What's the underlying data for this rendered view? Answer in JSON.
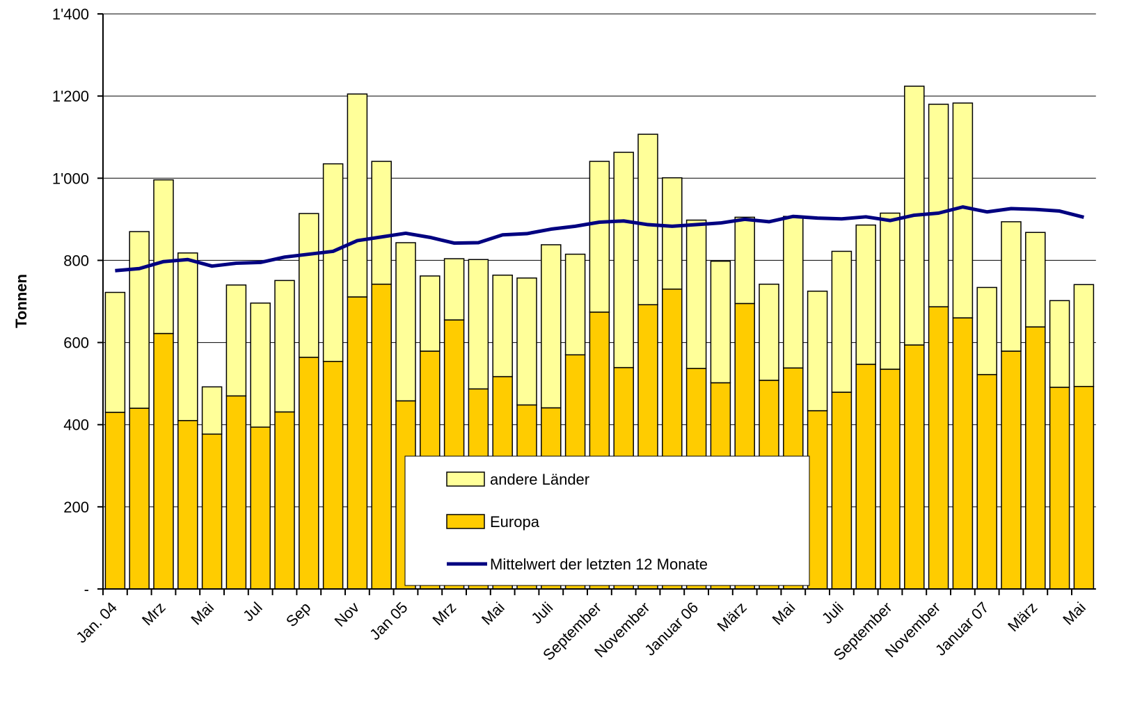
{
  "chart_data": {
    "type": "bar",
    "stacked": true,
    "y_label": "Tonnen",
    "categories": [
      "Jan. 04",
      null,
      "Mrz",
      null,
      "Mai",
      null,
      "Jul",
      null,
      "Sep",
      null,
      "Nov",
      null,
      "Jan 05",
      null,
      "Mrz",
      null,
      "Mai",
      null,
      "Juli",
      null,
      "September",
      null,
      "November",
      null,
      "Januar 06",
      null,
      "März",
      null,
      "Mai",
      null,
      "Juli",
      null,
      "September",
      null,
      "November",
      null,
      "Januar 07",
      null,
      "März",
      null,
      "Mai"
    ],
    "series": [
      {
        "name": "Europa",
        "type": "bar",
        "color": "#FFCC00",
        "values": [
          430,
          440,
          622,
          410,
          377,
          470,
          394,
          431,
          564,
          554,
          711,
          742,
          458,
          579,
          655,
          487,
          517,
          448,
          441,
          570,
          674,
          539,
          692,
          730,
          537,
          502,
          695,
          508,
          538,
          434,
          479,
          547,
          535,
          594,
          687,
          660,
          522,
          579,
          638,
          491,
          493
        ]
      },
      {
        "name": "andere Länder",
        "type": "bar",
        "color": "#FFFF99",
        "values": [
          292,
          430,
          374,
          408,
          115,
          270,
          302,
          320,
          350,
          481,
          494,
          299,
          385,
          183,
          149,
          315,
          247,
          309,
          397,
          245,
          367,
          524,
          415,
          271,
          361,
          296,
          210,
          234,
          369,
          291,
          343,
          339,
          380,
          630,
          493,
          523,
          212,
          315,
          230,
          211,
          248
        ]
      },
      {
        "name": "Mittelwert der letzten 12 Monate",
        "type": "line",
        "color": "#000080",
        "values": [
          775,
          780,
          797,
          802,
          786,
          793,
          795,
          808,
          815,
          822,
          848,
          857,
          866,
          856,
          842,
          843,
          862,
          865,
          876,
          883,
          893,
          896,
          887,
          883,
          887,
          891,
          900,
          894,
          907,
          903,
          901,
          906,
          897,
          910,
          915,
          930,
          918,
          926,
          924,
          920,
          905
        ]
      }
    ],
    "ylim": [
      0,
      1400
    ],
    "yticks": [
      {
        "value": 0,
        "label": "-"
      },
      200,
      400,
      600,
      800,
      {
        "value": 1000,
        "label": "1'000"
      },
      {
        "value": 1200,
        "label": "1'200"
      },
      {
        "value": 1400,
        "label": "1'400"
      }
    ],
    "grid": true
  }
}
